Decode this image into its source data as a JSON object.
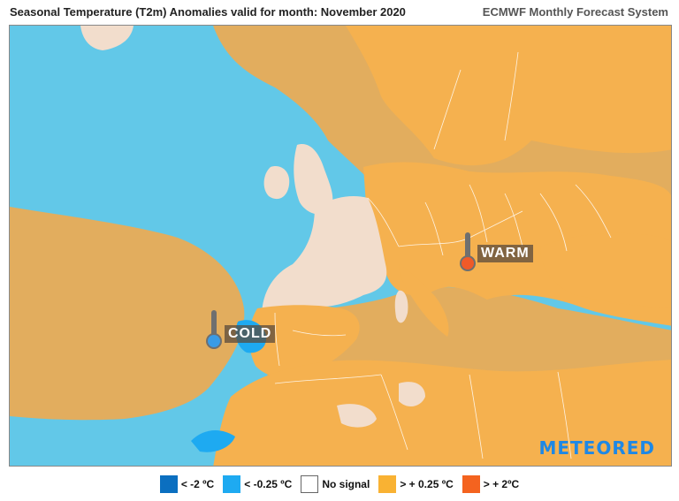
{
  "header": {
    "title": "Seasonal Temperature (T2m) Anomalies valid for month: November 2020",
    "subtitle": "ECMWF Monthly Forecast System"
  },
  "map": {
    "labels": {
      "cold": "COLD",
      "warm": "WARM"
    },
    "brand": "METEORED"
  },
  "legend": {
    "items": [
      {
        "label": "< -2 ºC",
        "color": "#0b6fc0"
      },
      {
        "label": "< -0.25 ºC",
        "color": "#1eaaf1"
      },
      {
        "label": "No signal",
        "color": "#ffffff"
      },
      {
        "label": "> + 0.25 ºC",
        "color": "#f9b233"
      },
      {
        "label": "> + 2ºC",
        "color": "#f4631f"
      }
    ]
  },
  "colors": {
    "sea_cold": "#62c8e8",
    "warm_land": "#f5b14f",
    "warm_sea": "#e2ad5e",
    "no_signal_land": "#f2ddcc",
    "cold_strong": "#1eaaf1",
    "thermometer_cold": "#3a9be6",
    "thermometer_warm": "#f05a28"
  }
}
